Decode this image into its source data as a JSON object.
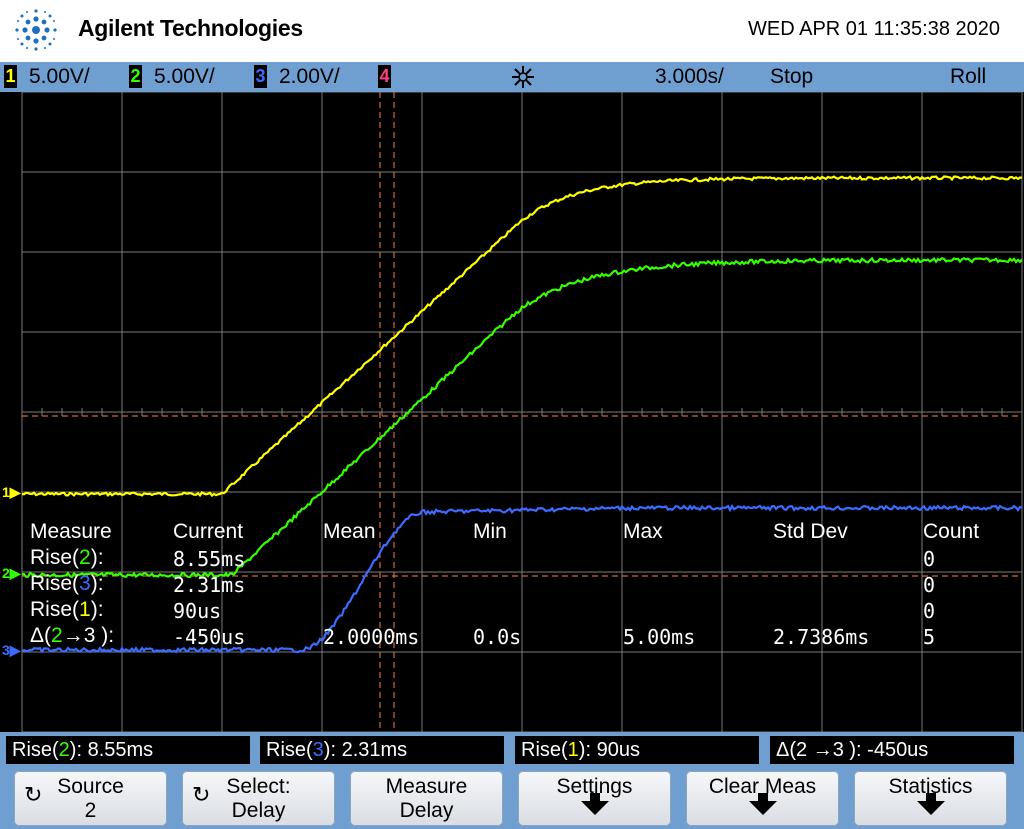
{
  "header": {
    "brand": "Agilent Technologies",
    "datetime": "WED APR 01 11:35:38 2020"
  },
  "status": {
    "ch1": {
      "num": "1",
      "scale": "5.00V/",
      "color": "#ffff00"
    },
    "ch2": {
      "num": "2",
      "scale": "5.00V/",
      "color": "#33ff00"
    },
    "ch3": {
      "num": "3",
      "scale": "2.00V/",
      "color": "#3b6cff"
    },
    "ch4": {
      "num": "4",
      "color": "#ff4080"
    },
    "timebase": "3.000s/",
    "run_state": "Stop",
    "mode": "Roll"
  },
  "markers": {
    "ch1": "1",
    "ch2": "2",
    "ch3": "3"
  },
  "measurements": {
    "headers": [
      "Measure",
      "Current",
      "Mean",
      "Min",
      "Max",
      "Std Dev",
      "Count"
    ],
    "rows": [
      {
        "name_pre": "Rise(",
        "ch": "2",
        "name_post": "):",
        "current": "8.55ms",
        "mean": "",
        "min": "",
        "max": "",
        "std": "",
        "count": "0"
      },
      {
        "name_pre": "Rise(",
        "ch": "3",
        "name_post": "):",
        "current": "2.31ms",
        "mean": "",
        "min": "",
        "max": "",
        "std": "",
        "count": "0"
      },
      {
        "name_pre": "Rise(",
        "ch": "1",
        "name_post": "):",
        "current": "90us",
        "mean": "",
        "min": "",
        "max": "",
        "std": "",
        "count": "0"
      },
      {
        "name_pre": "Δ(",
        "ch": "2",
        "name_post": "→3 ):",
        "current": "-450us",
        "mean": "2.0000ms",
        "min": "0.0s",
        "max": "5.00ms",
        "std": "2.7386ms",
        "count": "5"
      }
    ]
  },
  "readouts": [
    {
      "pre": "Rise(",
      "ch": "2",
      "post": "): 8.55ms"
    },
    {
      "pre": "Rise(",
      "ch": "3",
      "post": "): 2.31ms"
    },
    {
      "pre": "Rise(",
      "ch": "1",
      "post": "): 90us"
    },
    {
      "pre": "Δ(2 →3 ): ",
      "ch": "",
      "post": "-450us"
    }
  ],
  "softkeys": [
    {
      "line1": "Source",
      "line2": "2",
      "icon": "rotate-knob-icon"
    },
    {
      "line1": "Select:",
      "line2": "Delay",
      "icon": "select-knob-icon"
    },
    {
      "line1": "Measure",
      "line2": "Delay",
      "icon": ""
    },
    {
      "line1": "Settings",
      "line2": "",
      "icon": "submenu-arrow-icon"
    },
    {
      "line1": "Clear Meas",
      "line2": "",
      "icon": "submenu-arrow-icon"
    },
    {
      "line1": "Statistics",
      "line2": "",
      "icon": "submenu-arrow-icon"
    }
  ],
  "colors": {
    "grid": "#7a7a7a",
    "cursor": "#ff8040",
    "ch1": "#ffff00",
    "ch2": "#33ff00",
    "ch3": "#3b6cff",
    "frame": "#6f9fd1"
  }
}
